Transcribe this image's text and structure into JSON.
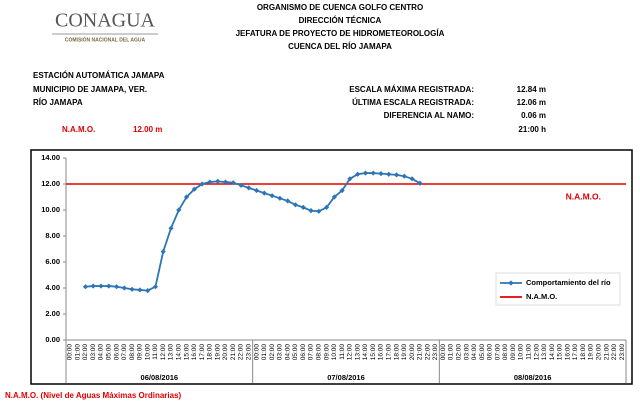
{
  "header": {
    "logo": "CONAGUA",
    "logo_subtitle": "COMISIÓN NACIONAL DEL AGUA",
    "title_lines": [
      "ORGANISMO DE CUENCA GOLFO CENTRO",
      "DIRECCIÓN TÉCNICA",
      "JEFATURA DE PROYECTO DE HIDROMETEOROLOGÍA",
      "CUENCA DEL RÍO JAMAPA"
    ]
  },
  "station": {
    "lines": [
      "ESTACIÓN AUTOMÁTICA JAMAPA",
      "MUNICIPIO DE JAMAPA, VER.",
      "RÍO JAMAPA"
    ]
  },
  "stats": [
    {
      "label": "ESCALA MÁXIMA REGISTRADA:",
      "value": "12.84 m"
    },
    {
      "label": "ÚLTIMA ESCALA REGISTRADA:",
      "value": "12.06 m"
    },
    {
      "label": "DIFERENCIA AL NAMO:",
      "value": "0.06 m"
    }
  ],
  "time": "21:00 h",
  "namo": {
    "label": "N.A.M.O.",
    "value": "12.00 m"
  },
  "chart_data": {
    "type": "line",
    "categories": [
      "00:00",
      "01:00",
      "02:00",
      "03:00",
      "04:00",
      "05:00",
      "06:00",
      "07:00",
      "08:00",
      "09:00",
      "10:00",
      "11:00",
      "12:00",
      "13:00",
      "14:00",
      "15:00",
      "16:00",
      "17:00",
      "18:00",
      "19:00",
      "20:00",
      "21:00",
      "22:00",
      "23:00",
      "00:00",
      "01:00",
      "02:00",
      "03:00",
      "04:00",
      "05:00",
      "06:00",
      "07:00",
      "08:00",
      "09:00",
      "10:00",
      "11:00",
      "12:00",
      "13:00",
      "14:00",
      "15:00",
      "16:00",
      "17:00",
      "18:00",
      "19:00",
      "20:00",
      "21:00",
      "22:00",
      "23:00",
      "00:00",
      "01:00",
      "02:00",
      "03:00",
      "04:00",
      "05:00",
      "06:00",
      "07:00",
      "08:00",
      "09:00",
      "10:00",
      "11:00",
      "12:00",
      "13:00",
      "14:00",
      "15:00",
      "16:00",
      "17:00",
      "18:00",
      "19:00",
      "20:00",
      "21:00",
      "22:00",
      "23:00"
    ],
    "groups": [
      "06/08/2016",
      "07/08/2016",
      "08/08/2016"
    ],
    "series": [
      {
        "name": "Comportamiento del río",
        "color": "#2e75b6",
        "values": [
          null,
          null,
          4.1,
          4.15,
          4.15,
          4.15,
          4.1,
          4.0,
          3.9,
          3.85,
          3.8,
          4.1,
          6.8,
          8.6,
          10.0,
          11.0,
          11.6,
          12.0,
          12.15,
          12.2,
          12.15,
          12.1,
          11.9,
          11.7,
          11.5,
          11.3,
          11.1,
          10.9,
          10.7,
          10.4,
          10.2,
          9.95,
          9.9,
          10.2,
          11.0,
          11.5,
          12.4,
          12.75,
          12.84,
          12.84,
          12.8,
          12.75,
          12.7,
          12.6,
          12.4,
          12.06,
          null,
          null,
          null,
          null,
          null,
          null,
          null,
          null,
          null,
          null,
          null,
          null,
          null,
          null,
          null,
          null,
          null,
          null,
          null,
          null,
          null,
          null,
          null,
          null,
          null,
          null
        ]
      }
    ],
    "reference_lines": [
      {
        "name": "N.A.M.O.",
        "value": 12,
        "color": "#e00000",
        "label": "N.A.M.O."
      }
    ],
    "ylim": [
      0,
      14
    ],
    "yticks": [
      {
        "value": 0,
        "label": "0.00"
      },
      {
        "value": 2,
        "label": "2.00"
      },
      {
        "value": 4,
        "label": "4.00"
      },
      {
        "value": 6,
        "label": "6.00"
      },
      {
        "value": 8,
        "label": "8.00"
      },
      {
        "value": 10,
        "label": "10.00"
      },
      {
        "value": 12,
        "label": "12.00"
      },
      {
        "value": 14,
        "label": "14.00"
      }
    ],
    "grid": false,
    "legend": "right"
  },
  "footer": "N.A.M.O. (Nivel de Aguas Máximas Ordinarias)"
}
